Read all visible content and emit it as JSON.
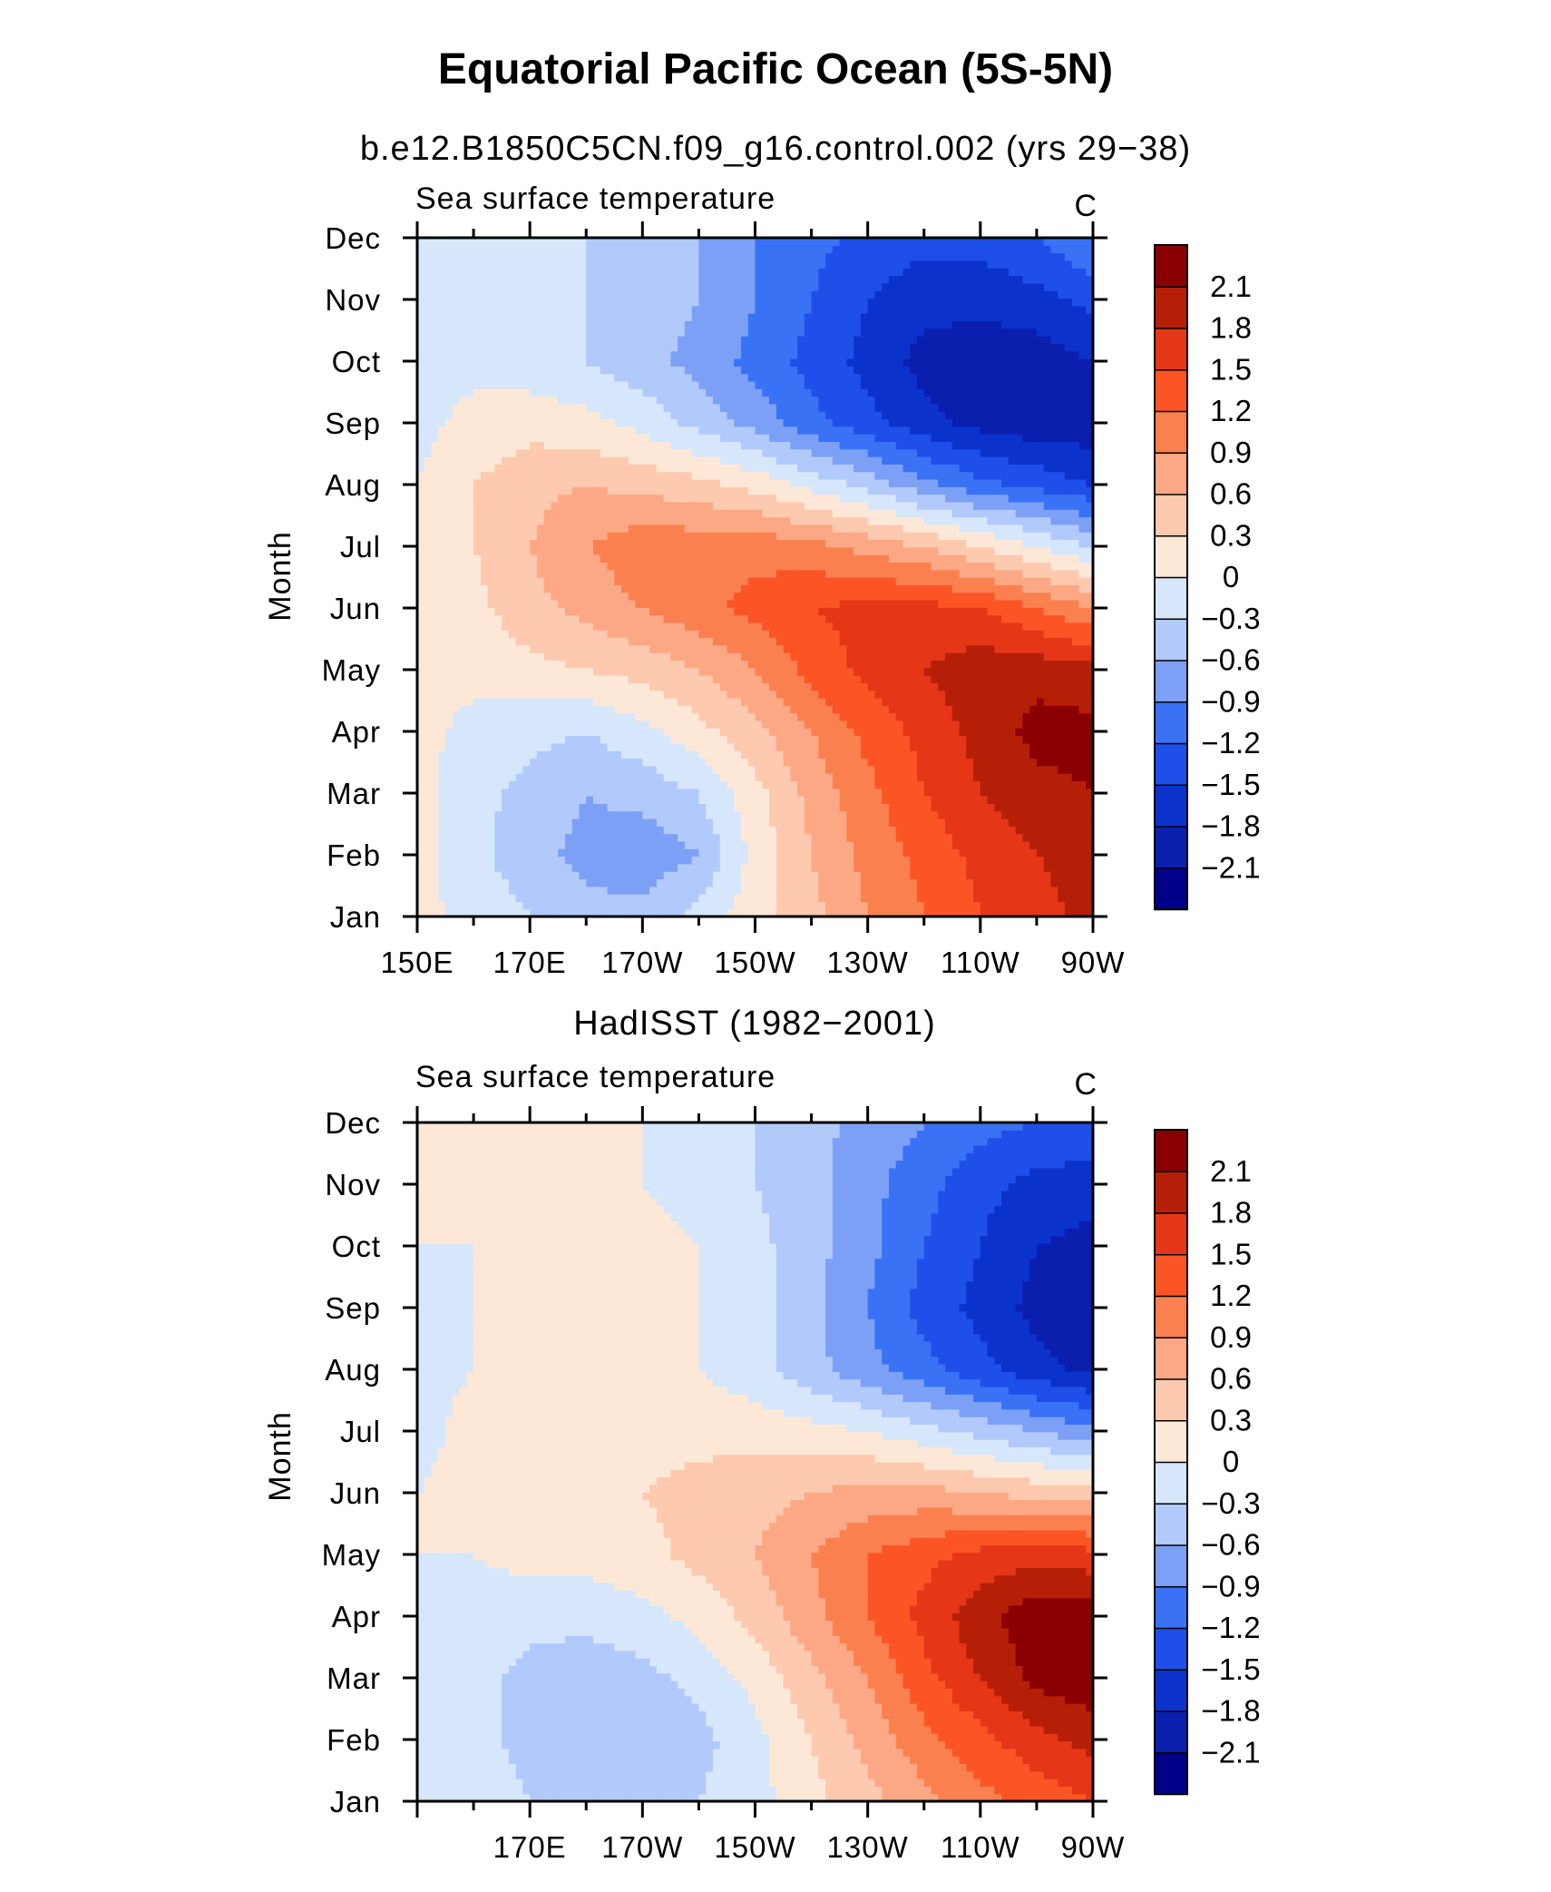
{
  "figure": {
    "title": "Equatorial Pacific Ocean (5S-5N)"
  },
  "chart_data": [
    {
      "type": "heatmap",
      "title": "b.e12.B1850C5CN.f09_g16.control.002 (yrs 29−38)",
      "left_label": "Sea surface temperature",
      "right_label": "C",
      "ylabel": "Month",
      "x_tick_labels": [
        "150E",
        "170E",
        "170W",
        "150W",
        "130W",
        "110W",
        "90W"
      ],
      "y_tick_labels": [
        "Jan",
        "Feb",
        "Mar",
        "Apr",
        "May",
        "Jun",
        "Jul",
        "Aug",
        "Sep",
        "Oct",
        "Nov",
        "Dec"
      ],
      "xlim": [
        150,
        270
      ],
      "x_unit_note": "",
      "levels": [
        "2.1",
        "1.8",
        "1.5",
        "1.2",
        "0.9",
        "0.6",
        "0.3",
        "0",
        "−0.3",
        "−0.6",
        "−0.9",
        "−1.2",
        "−1.5",
        "−1.8",
        "−2.1"
      ],
      "x": [
        150,
        160,
        170,
        180,
        190,
        200,
        210,
        220,
        230,
        240,
        250,
        260,
        270
      ],
      "z": [
        [
          0.1,
          -0.1,
          -0.3,
          -0.5,
          -0.5,
          -0.2,
          0.2,
          0.5,
          0.9,
          1.2,
          1.5,
          1.7,
          1.9
        ],
        [
          0.1,
          -0.2,
          -0.5,
          -0.7,
          -0.8,
          -0.6,
          0.1,
          0.6,
          1.0,
          1.3,
          1.6,
          1.8,
          1.9
        ],
        [
          0.1,
          -0.2,
          -0.4,
          -0.6,
          -0.5,
          -0.3,
          0.2,
          0.7,
          1.1,
          1.5,
          1.8,
          2.0,
          2.1
        ],
        [
          0.1,
          -0.1,
          -0.2,
          -0.3,
          -0.1,
          0.2,
          0.5,
          0.9,
          1.3,
          1.6,
          1.9,
          2.2,
          2.2
        ],
        [
          0.1,
          0.1,
          0.2,
          0.3,
          0.4,
          0.6,
          0.9,
          1.3,
          1.6,
          1.8,
          2.0,
          2.0,
          1.9
        ],
        [
          0.1,
          0.2,
          0.5,
          0.7,
          0.9,
          1.1,
          1.3,
          1.5,
          1.6,
          1.6,
          1.5,
          1.2,
          0.9
        ],
        [
          0.1,
          0.3,
          0.6,
          0.9,
          1.1,
          1.1,
          1.1,
          1.0,
          0.8,
          0.6,
          0.3,
          0.0,
          -0.3
        ],
        [
          0.0,
          0.3,
          0.5,
          0.6,
          0.5,
          0.4,
          0.2,
          -0.1,
          -0.4,
          -0.8,
          -1.1,
          -1.3,
          -1.5
        ],
        [
          -0.1,
          0.1,
          0.2,
          0.1,
          -0.1,
          -0.4,
          -0.7,
          -1.1,
          -1.4,
          -1.7,
          -1.9,
          -2.0,
          -2.0
        ],
        [
          -0.1,
          -0.1,
          -0.2,
          -0.3,
          -0.5,
          -0.7,
          -1.0,
          -1.3,
          -1.6,
          -1.9,
          -2.0,
          -2.0,
          -1.8
        ],
        [
          -0.1,
          -0.1,
          -0.2,
          -0.3,
          -0.4,
          -0.6,
          -0.9,
          -1.2,
          -1.5,
          -1.7,
          -1.7,
          -1.6,
          -1.4
        ],
        [
          0.0,
          -0.1,
          -0.2,
          -0.3,
          -0.4,
          -0.6,
          -0.9,
          -1.1,
          -1.3,
          -1.4,
          -1.4,
          -1.2,
          -0.9
        ]
      ]
    },
    {
      "type": "heatmap",
      "title": "HadISST (1982−2001)",
      "left_label": "Sea surface temperature",
      "right_label": "C",
      "ylabel": "Month",
      "x_tick_labels": [
        "",
        "170E",
        "170W",
        "150W",
        "130W",
        "110W",
        "90W"
      ],
      "y_tick_labels": [
        "Jan",
        "Feb",
        "Mar",
        "Apr",
        "May",
        "Jun",
        "Jul",
        "Aug",
        "Sep",
        "Oct",
        "Nov",
        "Dec"
      ],
      "xlim": [
        150,
        270
      ],
      "levels": [
        "2.1",
        "1.8",
        "1.5",
        "1.2",
        "0.9",
        "0.6",
        "0.3",
        "0",
        "−0.3",
        "−0.6",
        "−0.9",
        "−1.2",
        "−1.5",
        "−1.8",
        "−2.1"
      ],
      "x": [
        150,
        160,
        170,
        180,
        190,
        200,
        210,
        220,
        230,
        240,
        250,
        260,
        270
      ],
      "z": [
        [
          0.0,
          -0.1,
          -0.3,
          -0.4,
          -0.4,
          -0.3,
          -0.1,
          0.2,
          0.5,
          0.8,
          1.1,
          1.3,
          1.5
        ],
        [
          0.0,
          -0.2,
          -0.4,
          -0.5,
          -0.5,
          -0.4,
          -0.1,
          0.3,
          0.7,
          1.1,
          1.4,
          1.7,
          1.9
        ],
        [
          0.0,
          -0.2,
          -0.4,
          -0.5,
          -0.4,
          -0.2,
          0.1,
          0.5,
          0.9,
          1.4,
          1.8,
          2.2,
          2.3
        ],
        [
          0.0,
          -0.1,
          -0.2,
          -0.2,
          -0.1,
          0.1,
          0.4,
          0.8,
          1.2,
          1.6,
          2.0,
          2.3,
          2.3
        ],
        [
          0.0,
          0.0,
          0.1,
          0.1,
          0.2,
          0.4,
          0.6,
          0.9,
          1.2,
          1.4,
          1.6,
          1.7,
          1.6
        ],
        [
          0.0,
          0.1,
          0.1,
          0.2,
          0.3,
          0.4,
          0.5,
          0.6,
          0.7,
          0.7,
          0.6,
          0.5,
          0.4
        ],
        [
          -0.1,
          0.1,
          0.1,
          0.2,
          0.2,
          0.2,
          0.2,
          0.1,
          0.0,
          -0.2,
          -0.4,
          -0.6,
          -0.8
        ],
        [
          -0.1,
          0.0,
          0.1,
          0.2,
          0.1,
          0.0,
          -0.2,
          -0.5,
          -0.8,
          -1.1,
          -1.4,
          -1.7,
          -1.9
        ],
        [
          -0.1,
          0.0,
          0.1,
          0.3,
          0.2,
          0.0,
          -0.2,
          -0.5,
          -0.9,
          -1.3,
          -1.6,
          -1.9,
          -2.0
        ],
        [
          0.0,
          0.0,
          0.1,
          0.1,
          0.1,
          0.0,
          -0.2,
          -0.5,
          -0.8,
          -1.2,
          -1.5,
          -1.8,
          -1.9
        ],
        [
          0.0,
          0.0,
          0.1,
          0.1,
          0.0,
          -0.1,
          -0.3,
          -0.5,
          -0.8,
          -1.1,
          -1.4,
          -1.6,
          -1.7
        ],
        [
          0.0,
          0.0,
          0.1,
          0.1,
          0.0,
          -0.2,
          -0.3,
          -0.5,
          -0.7,
          -0.9,
          -1.1,
          -1.2,
          -1.2
        ]
      ]
    }
  ],
  "colorbar": {
    "colors": [
      "#00008b",
      "#0a1fae",
      "#0b33cc",
      "#1f4fe8",
      "#3a72f5",
      "#7ca0f6",
      "#b2c9fc",
      "#d6e7fc",
      "#fde8d8",
      "#fdc9af",
      "#fca885",
      "#fb8050",
      "#fb5526",
      "#e53617",
      "#b51f08",
      "#8a0000"
    ]
  }
}
